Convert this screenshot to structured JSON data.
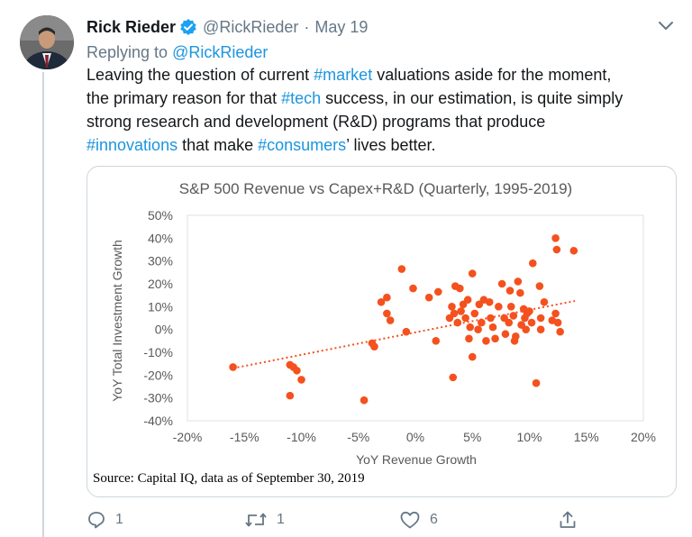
{
  "tweet": {
    "author_name": "Rick Rieder",
    "handle": "@RickRieder",
    "separator": "·",
    "date": "May 19",
    "replying_prefix": "Replying to",
    "replying_to": "@RickRieder",
    "verified_icon": "verified-badge-icon",
    "menu_icon": "chevron-down-icon",
    "text": {
      "l1_a": "Leaving the question of current ",
      "l1_tag": "#market",
      "l1_b": " valuations aside for the moment,",
      "l2_a": "the primary reason for that ",
      "l2_tag": "#tech",
      "l2_b": " success, in our estimation, is quite simply",
      "l3": "strong research and development (R&D) programs that produce",
      "l4_tag1": "#innovations",
      "l4_mid": " that make ",
      "l4_tag2": "#consumers",
      "l4_end": "’ lives better."
    },
    "source_note": "Source: Capital IQ, data as of September 30, 2019",
    "actions": {
      "reply_count": "1",
      "retweet_count": "1",
      "like_count": "6"
    },
    "colors": {
      "link": "#1b95e0",
      "muted": "#657786",
      "marker": "#f4511e",
      "verified": "#1da1f2"
    }
  },
  "chart_data": {
    "type": "scatter",
    "title": "S&P 500 Revenue vs Capex+R&D (Quarterly, 1995-2019)",
    "xlabel": "YoY Revenue  Growth",
    "ylabel": "YoY Total Investment Growth",
    "xlim": [
      -20,
      20
    ],
    "ylim": [
      -40,
      50
    ],
    "x_ticks": [
      "-20%",
      "-15%",
      "-10%",
      "-5%",
      "0%",
      "5%",
      "10%",
      "15%",
      "20%"
    ],
    "y_ticks": [
      "50%",
      "40%",
      "30%",
      "20%",
      "10%",
      "0%",
      "-10%",
      "-20%",
      "-30%",
      "-40%"
    ],
    "trendline": {
      "x": [
        -16,
        14
      ],
      "y": [
        -17,
        12.5
      ]
    },
    "points": [
      [
        -16,
        -16.5
      ],
      [
        -11,
        -15.5
      ],
      [
        -10.7,
        -16.5
      ],
      [
        -10.4,
        -18
      ],
      [
        -10,
        -22
      ],
      [
        -11,
        -29
      ],
      [
        -4.5,
        -31
      ],
      [
        -3.6,
        -7.5
      ],
      [
        -3.8,
        -6
      ],
      [
        -3,
        12
      ],
      [
        -2.5,
        14
      ],
      [
        -2.5,
        7
      ],
      [
        -2.2,
        4
      ],
      [
        -1.2,
        26.5
      ],
      [
        -0.8,
        -1
      ],
      [
        -0.2,
        18
      ],
      [
        1.2,
        14
      ],
      [
        1.8,
        -5
      ],
      [
        2,
        16.5
      ],
      [
        3,
        5
      ],
      [
        3.2,
        10
      ],
      [
        3.4,
        7
      ],
      [
        3.5,
        19
      ],
      [
        3.7,
        3
      ],
      [
        3.3,
        -21
      ],
      [
        3.9,
        18
      ],
      [
        4,
        8
      ],
      [
        4.2,
        11
      ],
      [
        4.4,
        5
      ],
      [
        4.6,
        13
      ],
      [
        4.8,
        1
      ],
      [
        5,
        24.5
      ],
      [
        5.2,
        7
      ],
      [
        5.5,
        0
      ],
      [
        5.6,
        11
      ],
      [
        5,
        -12
      ],
      [
        4.7,
        -4
      ],
      [
        5.8,
        3
      ],
      [
        6,
        13
      ],
      [
        6.2,
        -5
      ],
      [
        6.5,
        12
      ],
      [
        6.6,
        5
      ],
      [
        6.8,
        1
      ],
      [
        7,
        -4
      ],
      [
        7.3,
        10
      ],
      [
        7.6,
        20
      ],
      [
        7.8,
        5
      ],
      [
        7.9,
        -2
      ],
      [
        8.2,
        3
      ],
      [
        8.3,
        17
      ],
      [
        8.4,
        10
      ],
      [
        8.6,
        6
      ],
      [
        8.7,
        -5
      ],
      [
        8.8,
        -3
      ],
      [
        9,
        21
      ],
      [
        9.2,
        16
      ],
      [
        9.3,
        2
      ],
      [
        9.5,
        9
      ],
      [
        9.6,
        5
      ],
      [
        9.7,
        0
      ],
      [
        9.8,
        7
      ],
      [
        10,
        8
      ],
      [
        10.2,
        3
      ],
      [
        10.3,
        29
      ],
      [
        10.6,
        -23.5
      ],
      [
        10.9,
        19
      ],
      [
        11,
        5
      ],
      [
        11,
        0
      ],
      [
        11.3,
        12
      ],
      [
        12,
        4
      ],
      [
        12.3,
        40
      ],
      [
        12.4,
        35
      ],
      [
        12.3,
        7
      ],
      [
        12.5,
        3
      ],
      [
        12.7,
        -1
      ],
      [
        13.9,
        34.5
      ]
    ]
  }
}
